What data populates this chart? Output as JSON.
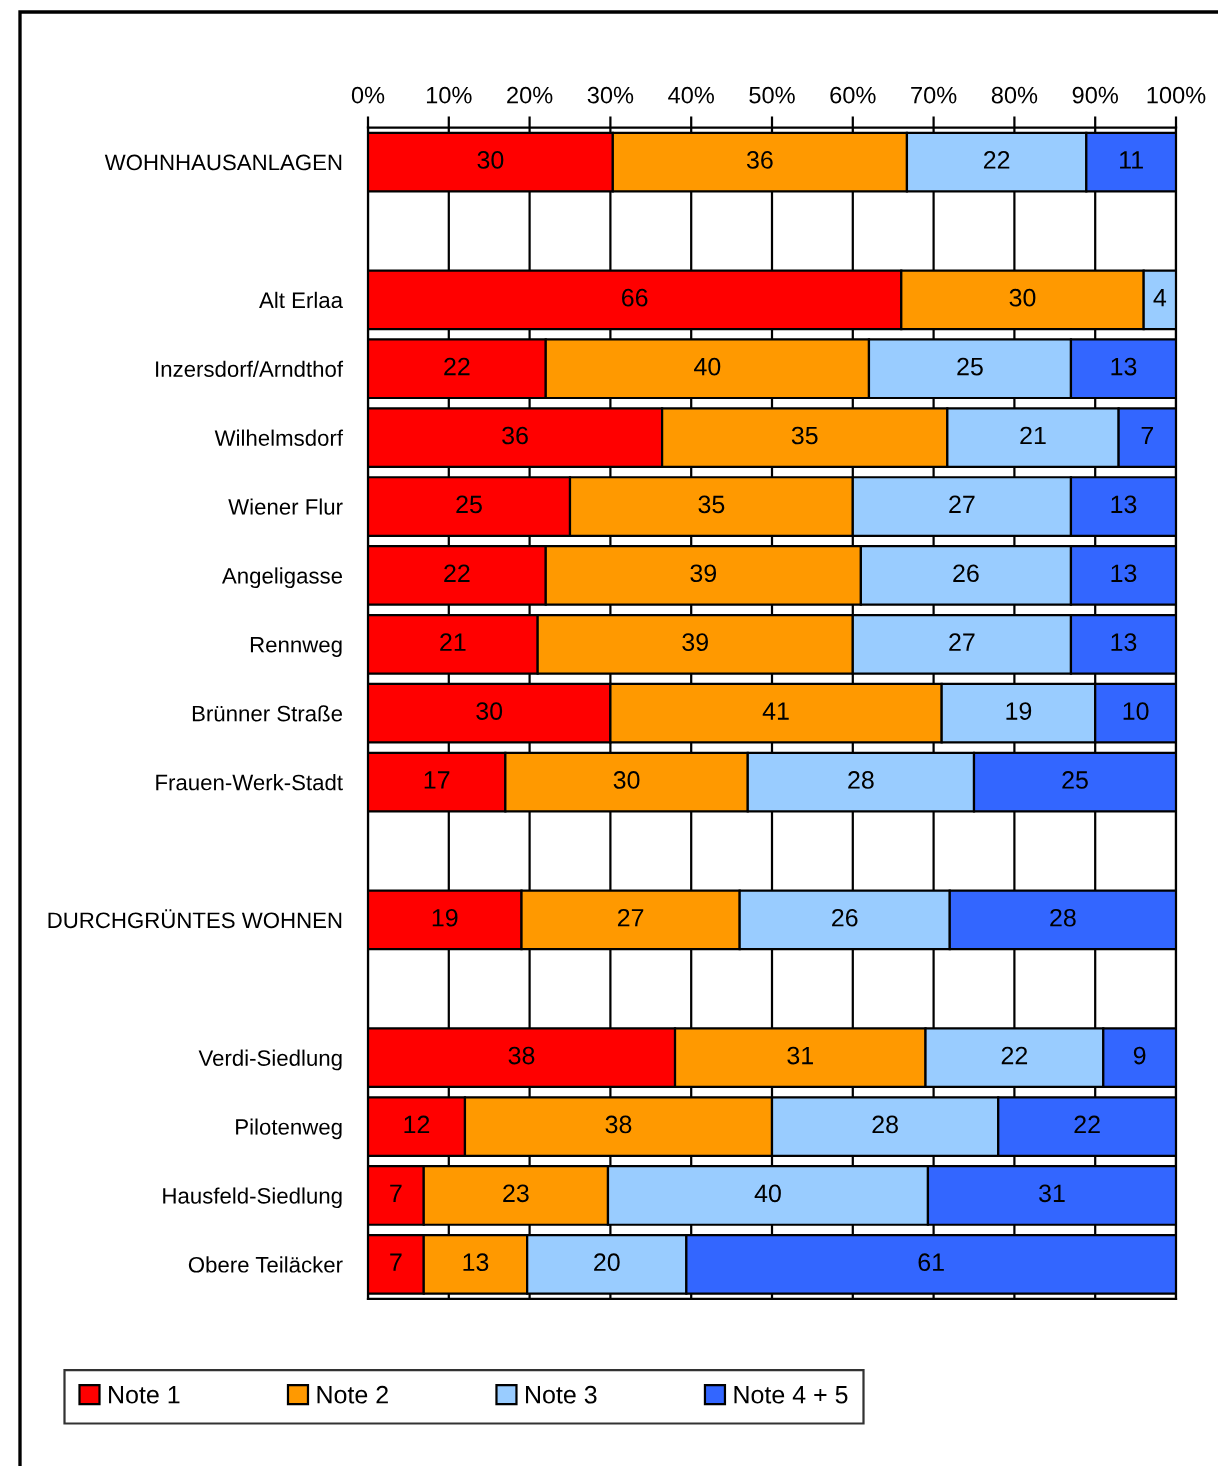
{
  "chart_data": {
    "type": "bar",
    "orientation": "horizontal",
    "stacked": true,
    "categories": [
      "WOHNHAUSANLAGEN",
      null,
      "Alt Erlaa",
      "Inzersdorf/Arndthof",
      "Wilhelmsdorf",
      "Wiener Flur",
      "Angeligasse",
      "Rennweg",
      "Brünner Straße",
      "Frauen-Werk-Stadt",
      null,
      "DURCHGRÜNTES WOHNEN",
      null,
      "Verdi-Siedlung",
      "Pilotenweg",
      "Hausfeld-Siedlung",
      "Obere Teiläcker"
    ],
    "series": [
      {
        "name": "Note 1",
        "color": "#ff0000",
        "values": [
          30.3,
          null,
          66,
          22,
          36.4,
          25,
          22,
          21,
          30,
          17,
          null,
          19,
          null,
          38,
          12,
          6.9,
          6.9
        ],
        "value_labels": [
          "30",
          null,
          "66",
          "22",
          "36",
          "25",
          "22",
          "21",
          "30",
          "17",
          null,
          "19",
          null,
          "38",
          "12",
          "7",
          "7"
        ]
      },
      {
        "name": "Note 2",
        "color": "#ff9900",
        "values": [
          36.4,
          null,
          30,
          40,
          35.3,
          35,
          39,
          39,
          41,
          30,
          null,
          27,
          null,
          31,
          38,
          22.8,
          12.8
        ],
        "value_labels": [
          "36",
          null,
          "30",
          "40",
          "35",
          "35",
          "39",
          "39",
          "41",
          "30",
          null,
          "27",
          null,
          "31",
          "38",
          "23",
          "13"
        ]
      },
      {
        "name": "Note 3",
        "color": "#99ccff",
        "values": [
          22.2,
          null,
          4,
          25,
          21.2,
          27,
          26,
          27,
          19,
          28,
          null,
          26,
          null,
          22,
          28,
          39.6,
          19.7
        ],
        "value_labels": [
          "22",
          null,
          "4",
          "25",
          "21",
          "27",
          "26",
          "27",
          "19",
          "28",
          null,
          "26",
          null,
          "22",
          "28",
          "40",
          "20"
        ]
      },
      {
        "name": "Note 4 + 5",
        "color": "#3366ff",
        "values": [
          11.1,
          null,
          null,
          13,
          7.1,
          13,
          13,
          13,
          10,
          25,
          null,
          28,
          null,
          9,
          22,
          30.7,
          60.6
        ],
        "value_labels": [
          "11",
          null,
          null,
          "13",
          "7",
          "13",
          "13",
          "13",
          "10",
          "25",
          null,
          "28",
          null,
          "9",
          "22",
          "31",
          "61"
        ]
      }
    ],
    "xlim": [
      0,
      100
    ],
    "xticks": [
      {
        "value": 0,
        "label": "0%"
      },
      {
        "value": 10,
        "label": "10%"
      },
      {
        "value": 20,
        "label": "20%"
      },
      {
        "value": 30,
        "label": "30%"
      },
      {
        "value": 40,
        "label": "40%"
      },
      {
        "value": 50,
        "label": "50%"
      },
      {
        "value": 60,
        "label": "60%"
      },
      {
        "value": 70,
        "label": "70%"
      },
      {
        "value": 80,
        "label": "80%"
      },
      {
        "value": 90,
        "label": "90%"
      },
      {
        "value": 100,
        "label": "100%"
      }
    ],
    "grid": "x",
    "legend": "bottom"
  }
}
